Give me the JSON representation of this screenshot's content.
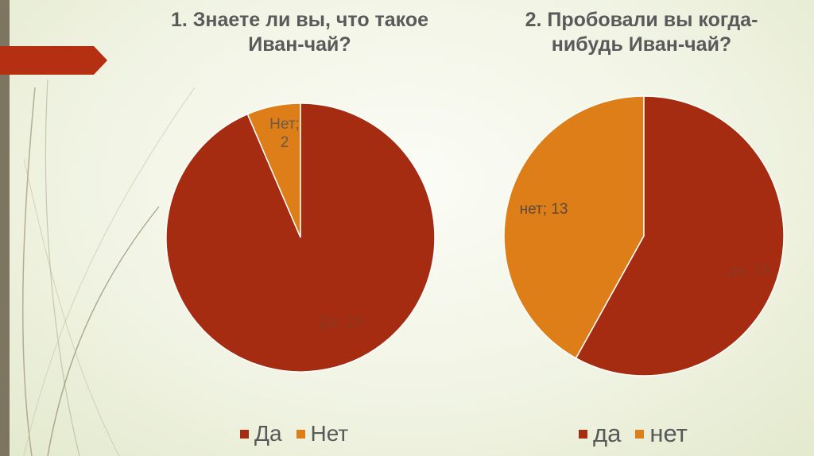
{
  "slide": {
    "colors": {
      "accent_red": "#a52c10",
      "accent_orange": "#de7e19",
      "bar": "#7d7560"
    }
  },
  "chart_data": [
    {
      "type": "pie",
      "title": "1. Знаете ли вы, что такое Иван-чай?",
      "categories": [
        "Да",
        "Нет"
      ],
      "values": [
        29,
        2
      ],
      "colors": [
        "#a52c10",
        "#de7e19"
      ],
      "data_labels": [
        "Да; 29",
        "Нет; 2"
      ],
      "legend": "bottom"
    },
    {
      "type": "pie",
      "title": "2. Пробовали вы когда-нибудь Иван-чай?",
      "categories": [
        "да",
        "нет"
      ],
      "values": [
        18,
        13
      ],
      "colors": [
        "#a52c10",
        "#de7e19"
      ],
      "data_labels": [
        "да; 18",
        "нет; 13"
      ],
      "legend": "bottom"
    }
  ]
}
